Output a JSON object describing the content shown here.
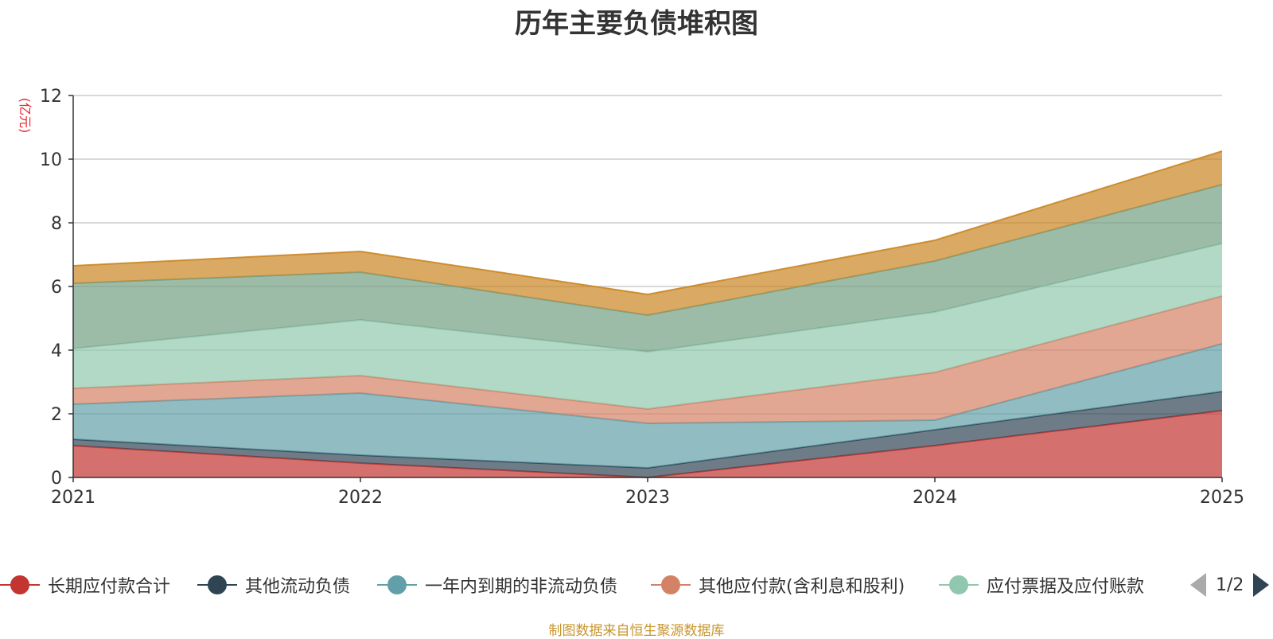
{
  "chart_data": {
    "type": "area",
    "stacked": true,
    "title": "历年主要负债堆积图",
    "ylabel": "(亿元)",
    "xlabel": "",
    "categories": [
      "2021",
      "2022",
      "2023",
      "2024",
      "2025"
    ],
    "ylim": [
      0,
      12
    ],
    "yticks": [
      0,
      2,
      4,
      6,
      8,
      10,
      12
    ],
    "grid": true,
    "series": [
      {
        "name": "长期应付款合计",
        "color": "#c23531",
        "values": [
          1.0,
          0.45,
          0.0,
          1.0,
          2.1
        ]
      },
      {
        "name": "其他流动负债",
        "color": "#2f4554",
        "values": [
          0.2,
          0.25,
          0.3,
          0.5,
          0.6
        ]
      },
      {
        "name": "一年内到期的非流动负债",
        "color": "#61a0a8",
        "values": [
          1.1,
          1.95,
          1.4,
          0.3,
          1.5
        ]
      },
      {
        "name": "其他应付款(含利息和股利)",
        "color": "#d48265",
        "values": [
          0.5,
          0.55,
          0.45,
          1.5,
          1.5
        ]
      },
      {
        "name": "应付票据及应付账款",
        "color": "#91c7ae",
        "values": [
          1.25,
          1.75,
          1.8,
          1.9,
          1.65
        ]
      },
      {
        "name": "",
        "color": "#749f83",
        "values": [
          2.05,
          1.5,
          1.15,
          1.6,
          1.85
        ]
      },
      {
        "name": "",
        "color": "#ca8622",
        "values": [
          0.55,
          0.65,
          0.65,
          0.65,
          1.05
        ]
      }
    ],
    "legend": {
      "items": [
        {
          "label": "长期应付款合计",
          "color": "#c23531"
        },
        {
          "label": "其他流动负债",
          "color": "#2f4554"
        },
        {
          "label": "一年内到期的非流动负债",
          "color": "#61a0a8"
        },
        {
          "label": "其他应付款(含利息和股利)",
          "color": "#d48265"
        },
        {
          "label": "应付票据及应付账款",
          "color": "#91c7ae"
        }
      ],
      "page": "1/2"
    },
    "source": "制图数据来自恒生聚源数据库"
  }
}
